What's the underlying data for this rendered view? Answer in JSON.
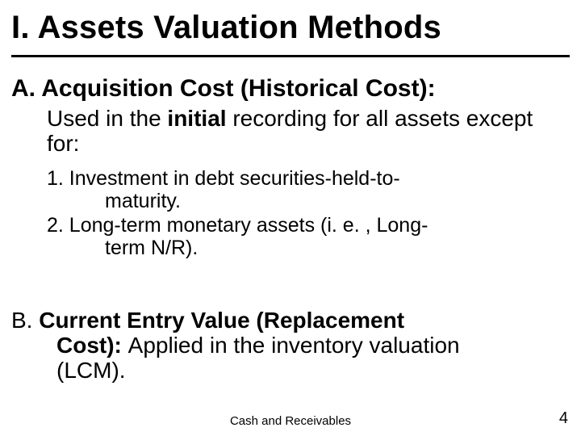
{
  "title": "I. Assets Valuation Methods",
  "sectionA": {
    "heading": "A. Acquisition Cost (Historical Cost):",
    "sub_pre": "Used in the ",
    "sub_bold": "initial",
    "sub_post": " recording for all assets except for:",
    "item1_line1": "1. Investment in debt securities-held-to-",
    "item1_line2": "maturity.",
    "item2_line1": "2. Long-term monetary assets (i. e. , Long-",
    "item2_line2": "term N/R)."
  },
  "sectionB": {
    "lead_plain": "B. ",
    "lead_bold1": "Current Entry Value  (Replacement",
    "line2_bold": "Cost): ",
    "line2_plain": "Applied in the inventory valuation",
    "line3": "(LCM)."
  },
  "footer": "Cash and Receivables",
  "pagenum": "4",
  "colors": {
    "text": "#000000",
    "background": "#ffffff",
    "rule": "#000000"
  }
}
